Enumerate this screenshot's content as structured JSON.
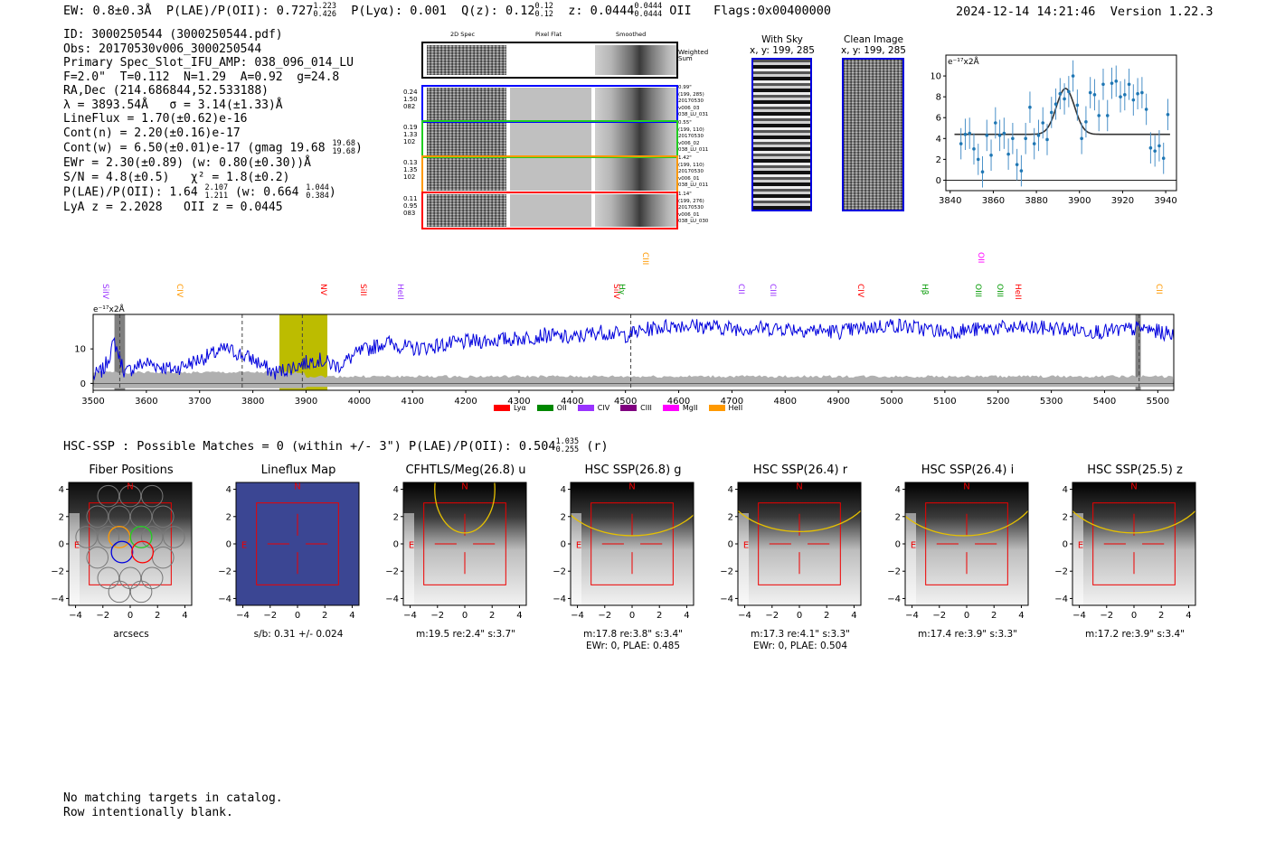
{
  "header": {
    "ew": "EW: 0.8±0.3Å",
    "plae_label": "P(LAE)/P(OII): 0.727",
    "plae_hi": "1.223",
    "plae_lo": "0.426",
    "plya": "P(Lyα): 0.001",
    "qz_label": "Q(z): 0.12",
    "qz_hi": "0.12",
    "qz_lo": "0.12",
    "z_label": "z: 0.0444",
    "z_hi": "0.0444",
    "z_lo": "0.0444",
    "z_line": "OII",
    "flags": "Flags:0x00400000",
    "timestamp": "2024-12-14 14:21:46",
    "version": "Version 1.22.3"
  },
  "info": {
    "id": "ID: 3000250544 (3000250544.pdf)",
    "obs": "Obs: 20170530v006_3000250544",
    "primary": "Primary Spec_Slot_IFU_AMP: 038_096_014_LU",
    "fiber": "F=2.0\"  T=0.112  N=1.29  A=0.92  g=24.8",
    "radec": "RA,Dec (214.686844,52.533188)",
    "lambda": "λ = 3893.54Å   σ = 3.14(±1.33)Å",
    "lineflux": "LineFlux = 1.70(±0.62)e-16",
    "contn": "Cont(n) = 2.20(±0.16)e-17",
    "contw": "Cont(w) = 6.50(±0.01)e-17 (gmag 19.68",
    "gmag_hi": "19.68",
    "gmag_lo": "19.68",
    "ewr": "EWr = 2.30(±0.89) (w: 0.80(±0.30))Å",
    "sn": "S/N = 4.8(±0.5)   χ² = 1.8(±0.2)",
    "plae2": "P(LAE)/P(OII): 1.64",
    "plae2_hi": "2.107",
    "plae2_lo": "1.211",
    "plae2_w": "(w: 0.664",
    "plae2_w_hi": "1.044",
    "plae2_w_lo": "0.384",
    "lya_z": "LyA z = 2.2028   OII z = 0.0445"
  },
  "cutouts": {
    "col_2d": "2D Spec",
    "col_flat": "Pixel Flat",
    "col_smooth": "Smoothed",
    "weighted_sum": "Weighted Sum",
    "rows": [
      {
        "left": [
          "0.24",
          "1.50",
          "082"
        ],
        "right": [
          "0.99\"",
          "(199, 285)",
          "20170530",
          "v006_03",
          "038_LU_031"
        ],
        "color": "#0000ff"
      },
      {
        "left": [
          "0.19",
          "1.33",
          "102"
        ],
        "right": [
          "0.55\"",
          "(199, 110)",
          "20170530",
          "v006_02",
          "038_LU_011"
        ],
        "color": "#22cc22"
      },
      {
        "left": [
          "0.13",
          "1.35",
          "102"
        ],
        "right": [
          "1.42\"",
          "(199, 110)",
          "20170530",
          "v006_01",
          "038_LU_011"
        ],
        "color": "#ff9900"
      },
      {
        "left": [
          "0.11",
          "0.95",
          "083"
        ],
        "right": [
          "1.14\"",
          "(199, 276)",
          "20170530",
          "v006_01",
          "038_LU_030"
        ],
        "color": "#ff0000"
      }
    ]
  },
  "sky": {
    "with_sky_title": "With Sky",
    "with_sky_coords": "x, y: 199, 285",
    "clean_title": "Clean Image",
    "clean_coords": "x, y: 199, 285"
  },
  "fit_plot": {
    "unit": "e⁻¹⁷x2Å",
    "yticks": [
      "0",
      "2",
      "4",
      "6",
      "8",
      "10"
    ],
    "xticks": [
      "3840",
      "3860",
      "3880",
      "3900",
      "3920",
      "3940"
    ]
  },
  "spectrum": {
    "unit": "e⁻¹⁷x2Å",
    "yticks": [
      "0",
      "10"
    ],
    "xticks": [
      "3500",
      "3600",
      "3700",
      "3800",
      "3900",
      "4000",
      "4100",
      "4200",
      "4300",
      "4400",
      "4500",
      "4600",
      "4700",
      "4800",
      "4900",
      "5000",
      "5100",
      "5200",
      "5300",
      "5400",
      "5500"
    ],
    "lines": [
      {
        "name": "SiIV",
        "color": "#9933ff"
      },
      {
        "name": "CIV",
        "color": "#ff9900"
      },
      {
        "name": "NV",
        "color": "#ff0000"
      },
      {
        "name": "SiII",
        "color": "#ff0000"
      },
      {
        "name": "HeII",
        "color": "#9933ff"
      },
      {
        "name": "SiIV",
        "color": "#ff0000"
      },
      {
        "name": "CIII",
        "color": "#ff9900"
      },
      {
        "name": "Hγ",
        "color": "#009900"
      },
      {
        "name": "CII",
        "color": "#9933ff"
      },
      {
        "name": "CIII",
        "color": "#9933ff"
      },
      {
        "name": "CIV",
        "color": "#ff0000"
      },
      {
        "name": "Hβ",
        "color": "#009900"
      },
      {
        "name": "OII",
        "color": "#ff00ff"
      },
      {
        "name": "OIII",
        "color": "#009900"
      },
      {
        "name": "OIII",
        "color": "#009900"
      },
      {
        "name": "HeII",
        "color": "#ff0000"
      },
      {
        "name": "CII",
        "color": "#ff9900"
      }
    ],
    "legend": [
      {
        "label": "Lyα",
        "color": "#ff0000"
      },
      {
        "label": "OII",
        "color": "#008800"
      },
      {
        "label": "CIV",
        "color": "#9933ff"
      },
      {
        "label": "CIII",
        "color": "#800080"
      },
      {
        "label": "MgII",
        "color": "#ff00ff"
      },
      {
        "label": "HeII",
        "color": "#ff9900"
      }
    ]
  },
  "hsc": {
    "label": "HSC-SSP : Possible Matches = 0 (within +/- 3\")  P(LAE)/P(OII): 0.504",
    "hi": "1.035",
    "lo": "0.255",
    "band": "(r)"
  },
  "panels": [
    {
      "title": "Fiber Positions",
      "caption1": "arcsecs",
      "caption2": ""
    },
    {
      "title": "Lineflux Map",
      "caption1": "s/b: 0.31 +/- 0.024",
      "caption2": ""
    },
    {
      "title": "CFHTLS/Meg(26.8) u",
      "caption1": "m:19.5  re:2.4\"  s:3.7\"",
      "caption2": ""
    },
    {
      "title": "HSC SSP(26.8) g",
      "caption1": "m:17.8  re:3.8\"  s:3.4\"",
      "caption2": "EWr: 0, PLAE: 0.485"
    },
    {
      "title": "HSC SSP(26.4) r",
      "caption1": "m:17.3  re:4.1\"  s:3.3\"",
      "caption2": "EWr: 0, PLAE: 0.504"
    },
    {
      "title": "HSC SSP(26.4) i",
      "caption1": "m:17.4  re:3.9\"  s:3.3\"",
      "caption2": ""
    },
    {
      "title": "HSC SSP(25.5) z",
      "caption1": "m:17.2  re:3.9\"  s:3.4\"",
      "caption2": ""
    }
  ],
  "panel_ticks": {
    "x": [
      "−4",
      "−2",
      "0",
      "2",
      "4"
    ],
    "y": [
      "4",
      "2",
      "0",
      "−2",
      "−4"
    ],
    "north": "N",
    "east": "E"
  },
  "footer": {
    "line1": "No matching targets in catalog.",
    "line2": "Row intentionally blank."
  },
  "chart_data": [
    {
      "type": "scatter",
      "title": "",
      "xlabel": "",
      "ylabel": "e-17x2Å",
      "xlim": [
        3838,
        3945
      ],
      "ylim": [
        -1,
        12
      ],
      "x": [
        3845,
        3847,
        3849,
        3851,
        3853,
        3855,
        3857,
        3859,
        3861,
        3863,
        3865,
        3867,
        3869,
        3871,
        3873,
        3875,
        3877,
        3879,
        3881,
        3883,
        3885,
        3887,
        3889,
        3891,
        3893,
        3895,
        3897,
        3899,
        3901,
        3903,
        3905,
        3907,
        3909,
        3911,
        3913,
        3915,
        3917,
        3919,
        3921,
        3923,
        3925,
        3927,
        3929,
        3931,
        3933,
        3935,
        3937,
        3939,
        3941
      ],
      "values": [
        3.5,
        4.4,
        4.5,
        3.0,
        2.0,
        0.8,
        4.3,
        2.4,
        5.5,
        4.3,
        4.5,
        2.5,
        4.0,
        1.5,
        0.9,
        4.0,
        7.0,
        3.5,
        4.3,
        5.5,
        3.9,
        6.5,
        7.3,
        8.3,
        7.8,
        8.5,
        10.0,
        7.2,
        4.0,
        5.6,
        8.4,
        8.2,
        6.2,
        9.2,
        6.2,
        9.3,
        9.5,
        8.0,
        8.2,
        9.2,
        7.7,
        8.3,
        8.4,
        6.8,
        3.1,
        2.8,
        3.3,
        2.1,
        6.3
      ],
      "fit_baseline": 4.4,
      "fit_peak_x": 3893.5,
      "fit_peak_y": 8.8
    },
    {
      "type": "line",
      "title": "",
      "xlabel": "",
      "ylabel": "e-17x2Å",
      "xlim": [
        3500,
        5530
      ],
      "ylim": [
        -2,
        20
      ],
      "series": [
        {
          "name": "flux",
          "color": "#0000dd"
        },
        {
          "name": "error",
          "color": "#aaaaaa"
        }
      ],
      "knots_x": [
        3500,
        3520,
        3540,
        3560,
        3580,
        3600,
        3650,
        3700,
        3750,
        3800,
        3840,
        3880,
        3920,
        3960,
        4000,
        4050,
        4100,
        4200,
        4300,
        4350,
        4400,
        4450,
        4500,
        4550,
        4600,
        4700,
        4800,
        4900,
        5000,
        5100,
        5200,
        5300,
        5400,
        5470,
        5530
      ],
      "knots_y": [
        2,
        4,
        12,
        3,
        5,
        6,
        4,
        7,
        10,
        7,
        3,
        5,
        7,
        5,
        9,
        12,
        10,
        12,
        13,
        14,
        13,
        15,
        14,
        16,
        17,
        16,
        16,
        15,
        17,
        15,
        16,
        16,
        15,
        16,
        14
      ],
      "error_level": 1.0,
      "marked_x": [
        3550,
        3780,
        3893,
        4510,
        5465
      ],
      "highlight_range": [
        3850,
        3940
      ]
    }
  ]
}
